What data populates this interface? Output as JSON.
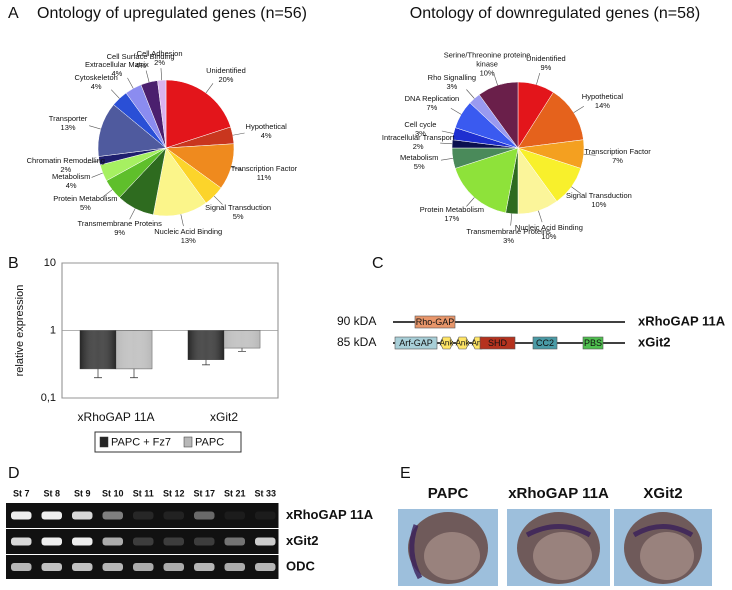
{
  "panels": [
    "A",
    "B",
    "C",
    "D",
    "E"
  ],
  "chart_data": [
    {
      "type": "pie",
      "title": "Ontology of upregulated genes (n=56)",
      "categories": [
        "Unidentified",
        "Hypothetical",
        "Transcription Factor",
        "Signal Transduction",
        "Nucleic Acid Binding",
        "Transmembrane Proteins",
        "Protein Metabolism",
        "Metabolism",
        "Chromatin Remodelling",
        "Transporter",
        "Cytoskeleton",
        "Extracellular Matrix",
        "Cell Surface Binding",
        "Cell Adhesion"
      ],
      "values": [
        20,
        4,
        11,
        5,
        13,
        9,
        5,
        4,
        2,
        13,
        4,
        4,
        4,
        2
      ],
      "value_labels": [
        "20%",
        "4%",
        "11%",
        "5%",
        "13%",
        "9%",
        "5%",
        "4%",
        "2%",
        "13%",
        "4%",
        "4%",
        "4%",
        "2%"
      ],
      "colors": [
        "#e3151b",
        "#c9361e",
        "#ef8a1e",
        "#fcd42a",
        "#fbf58a",
        "#2e6b1f",
        "#5fbf2b",
        "#a6f061",
        "#1f1f6e",
        "#4f5a9e",
        "#2a4fd6",
        "#8b8cf0",
        "#4b1f6e",
        "#d9b3f0"
      ]
    },
    {
      "type": "pie",
      "title": "Ontology of downregulated genes (n=58)",
      "categories": [
        "Unidentified",
        "Hypothetical",
        "Transcription Factor",
        "Signal Transduction",
        "Nucleic Acid Binding",
        "Transmembrane Proteins",
        "Protein Metabolism",
        "Metabolism",
        "Intracellular Transport",
        "Cell cycle",
        "DNA Replication",
        "Rho Signalling",
        "Serine/Threonine proteine kinase"
      ],
      "values": [
        9,
        14,
        7,
        10,
        10,
        3,
        17,
        5,
        2,
        3,
        7,
        3,
        10
      ],
      "value_labels": [
        "9%",
        "14%",
        "7%",
        "10%",
        "10%",
        "3%",
        "17%",
        "5%",
        "2%",
        "3%",
        "7%",
        "3%",
        "10%"
      ],
      "colors": [
        "#e3151b",
        "#e5621c",
        "#f4a020",
        "#f8f02c",
        "#fbf59a",
        "#2e6b1f",
        "#8ee23a",
        "#4a8a5a",
        "#0b1050",
        "#1e2fd0",
        "#3a5af0",
        "#9a9af0",
        "#6a1f4a"
      ]
    },
    {
      "type": "bar",
      "ylabel": "relative expression",
      "log_scale": true,
      "grid": true,
      "legend": "bottom",
      "categories": [
        "xRhoGAP 11A",
        "xGit2"
      ],
      "series": [
        {
          "name": "PAPC + Fz7",
          "color": "#262626",
          "values": [
            0.27,
            0.37
          ],
          "errors": [
            0.07,
            0.06
          ]
        },
        {
          "name": "PAPC",
          "color": "#b8b8b8",
          "values": [
            0.27,
            0.55
          ],
          "errors": [
            0.07,
            0.06
          ]
        }
      ],
      "ylim": [
        0.1,
        10
      ],
      "yticks": [
        {
          "value": 0.1,
          "label": "0,1"
        },
        1,
        10
      ]
    }
  ],
  "diagram": {
    "rows": [
      {
        "size": "90 kDA",
        "name": "xRhoGAP 11A",
        "domains": [
          "Rho-GAP"
        ]
      },
      {
        "size": "85 kDA",
        "name": "xGit2",
        "domains": [
          "Arf-GAP",
          "Ank",
          "Ank",
          "Ank",
          "SHD",
          "CC2",
          "PBS"
        ]
      }
    ]
  },
  "gel": {
    "lanes": [
      "St 7",
      "St 8",
      "St 9",
      "St 10",
      "St 11",
      "St 12",
      "St 17",
      "St 21",
      "St 33"
    ],
    "rows": [
      "xRhoGAP 11A",
      "xGit2",
      "ODC"
    ]
  },
  "embryos": {
    "labels": [
      "PAPC",
      "xRhoGAP 11A",
      "XGit2"
    ]
  }
}
